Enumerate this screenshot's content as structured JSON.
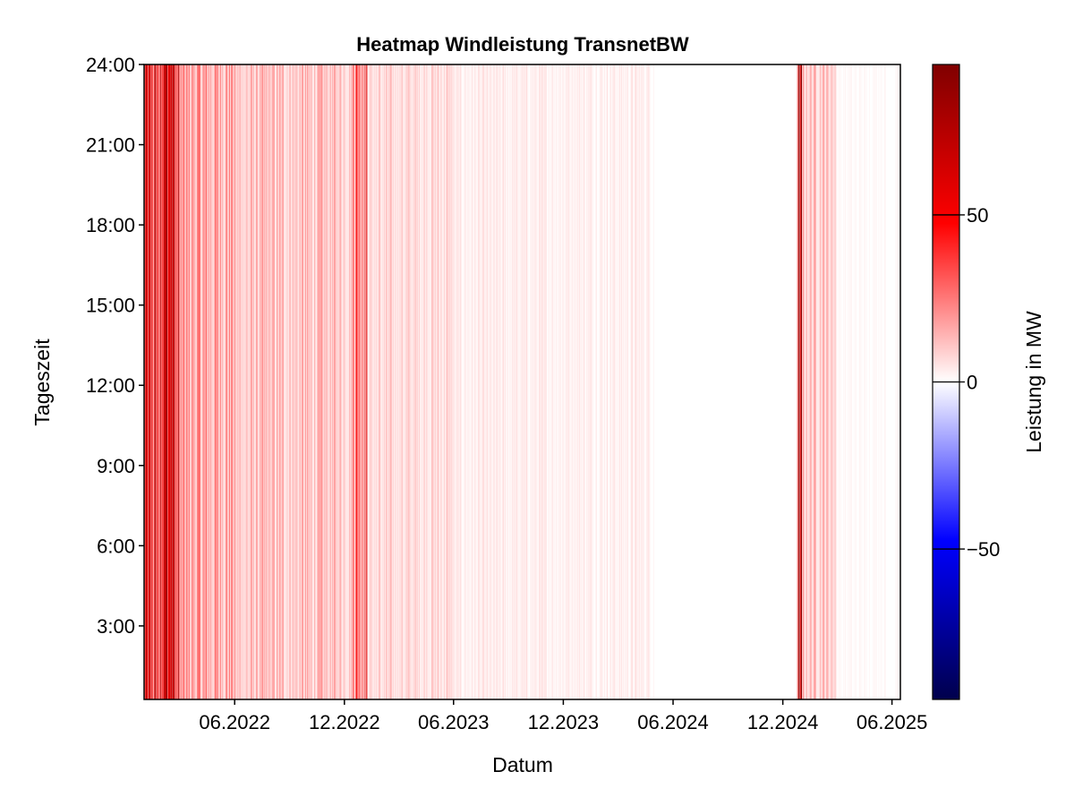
{
  "chart_data": {
    "type": "heatmap",
    "title": "Heatmap Windleistung TransnetBW",
    "xlabel": "Datum",
    "ylabel": "Tageszeit",
    "x_range": [
      "2022-01-01",
      "2025-06-15"
    ],
    "y_range_hours": [
      0.25,
      24
    ],
    "x_ticks": [
      {
        "date": "2022-06-01",
        "label": "06.2022"
      },
      {
        "date": "2022-12-01",
        "label": "12.2022"
      },
      {
        "date": "2023-06-01",
        "label": "06.2023"
      },
      {
        "date": "2023-12-01",
        "label": "12.2023"
      },
      {
        "date": "2024-06-01",
        "label": "06.2024"
      },
      {
        "date": "2024-12-01",
        "label": "12.2024"
      },
      {
        "date": "2025-06-01",
        "label": "06.2025"
      }
    ],
    "y_ticks": [
      {
        "hour": 3,
        "label": "3:00"
      },
      {
        "hour": 6,
        "label": "6:00"
      },
      {
        "hour": 9,
        "label": "9:00"
      },
      {
        "hour": 12,
        "label": "12:00"
      },
      {
        "hour": 15,
        "label": "15:00"
      },
      {
        "hour": 18,
        "label": "18:00"
      },
      {
        "hour": 21,
        "label": "21:00"
      },
      {
        "hour": 24,
        "label": "24:00"
      }
    ],
    "colorbar": {
      "label": "Leistung in MW",
      "range": [
        -95,
        95
      ],
      "colormap": "seismic",
      "ticks": [
        {
          "value": -50,
          "label": "−50"
        },
        {
          "value": 0,
          "label": "0"
        },
        {
          "value": 50,
          "label": "50"
        }
      ]
    },
    "bands": [
      {
        "start": "2022-01-01",
        "end": "2022-03-01",
        "level": 55
      },
      {
        "start": "2022-01-25",
        "end": "2022-02-22",
        "level": 85
      },
      {
        "start": "2022-03-01",
        "end": "2022-06-01",
        "level": 22
      },
      {
        "start": "2022-06-01",
        "end": "2022-12-15",
        "level": 14
      },
      {
        "start": "2022-12-15",
        "end": "2023-01-08",
        "level": 42
      },
      {
        "start": "2023-01-08",
        "end": "2023-06-01",
        "level": 9
      },
      {
        "start": "2023-06-01",
        "end": "2024-04-30",
        "level": 4
      },
      {
        "start": "2024-04-30",
        "end": "2024-12-25",
        "level": 0.5
      },
      {
        "start": "2024-12-25",
        "end": "2025-01-02",
        "level": 62
      },
      {
        "start": "2025-01-02",
        "end": "2025-03-01",
        "level": 14
      },
      {
        "start": "2025-03-01",
        "end": "2025-06-15",
        "level": 1.5
      }
    ]
  }
}
